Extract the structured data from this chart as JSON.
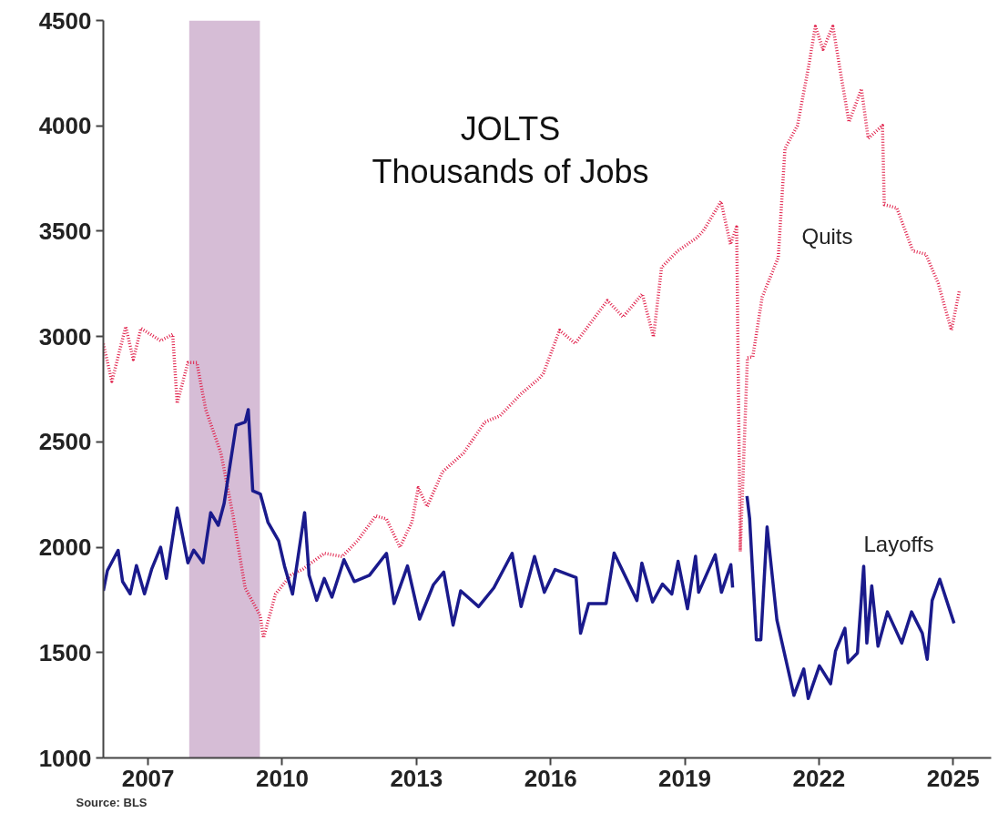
{
  "chart_data": {
    "type": "line",
    "title": "JOLTS\nThousands of Jobs",
    "xlim": [
      2006.0,
      2025.85
    ],
    "xticks": [
      2007,
      2010,
      2013,
      2016,
      2019,
      2022,
      2025
    ],
    "ylim": [
      1000,
      4500
    ],
    "yticks": [
      1000,
      1500,
      2000,
      2500,
      3000,
      3500,
      4000,
      4500
    ],
    "grid": false,
    "marker": "none",
    "bands": [
      {
        "axis": "x",
        "from": 2007.92,
        "to": 2009.5,
        "color": "#d6bdd6"
      }
    ],
    "annotations": [
      "Source: BLS"
    ],
    "series": [
      {
        "name": "Quits",
        "color": "#e0204a",
        "line_style": "dotted",
        "x": [
          2006.0,
          2006.19,
          2006.5,
          2006.67,
          2006.84,
          2007.28,
          2007.55,
          2007.65,
          2007.89,
          2008.09,
          2008.29,
          2008.63,
          2008.9,
          2009.17,
          2009.51,
          2009.58,
          2009.85,
          2010.19,
          2010.46,
          2010.94,
          2011.34,
          2011.68,
          2012.09,
          2012.33,
          2012.63,
          2012.9,
          2013.04,
          2013.24,
          2013.58,
          2014.05,
          2014.53,
          2014.87,
          2015.34,
          2015.75,
          2015.84,
          2016.2,
          2016.55,
          2017.27,
          2017.62,
          2018.05,
          2018.3,
          2018.48,
          2018.84,
          2019.27,
          2019.41,
          2019.81,
          2020.02,
          2020.16,
          2020.24,
          2020.4,
          2020.52,
          2020.73,
          2021.09,
          2021.24,
          2021.52,
          2021.77,
          2021.92,
          2022.09,
          2022.31,
          2022.52,
          2022.67,
          2022.95,
          2023.1,
          2023.42,
          2023.46,
          2023.74,
          2024.1,
          2024.39,
          2024.67,
          2024.96,
          2025.14
        ],
        "values": [
          2965,
          2787,
          3047,
          2891,
          3039,
          2980,
          3010,
          2683,
          2876,
          2876,
          2653,
          2446,
          2149,
          1807,
          1674,
          1570,
          1778,
          1867,
          1896,
          1971,
          1956,
          2030,
          2149,
          2134,
          2000,
          2119,
          2282,
          2193,
          2357,
          2446,
          2594,
          2624,
          2728,
          2802,
          2826,
          3030,
          2967,
          3171,
          3093,
          3202,
          2998,
          3328,
          3406,
          3469,
          3500,
          3641,
          3438,
          3520,
          1980,
          2900,
          2904,
          3187,
          3375,
          3892,
          4002,
          4284,
          4472,
          4363,
          4472,
          4206,
          4018,
          4175,
          3940,
          4002,
          3626,
          3610,
          3406,
          3391,
          3250,
          3030,
          3218
        ]
      },
      {
        "name": "Layoffs",
        "color": "#1a1a8c",
        "line_style": "solid",
        "x": [
          2006.0,
          2006.09,
          2006.33,
          2006.43,
          2006.6,
          2006.74,
          2006.92,
          2007.08,
          2007.28,
          2007.41,
          2007.65,
          2007.89,
          2008.02,
          2008.23,
          2008.4,
          2008.57,
          2008.7,
          2008.97,
          2009.17,
          2009.24,
          2009.34,
          2009.51,
          2009.68,
          2009.92,
          2010.05,
          2010.23,
          2010.5,
          2010.6,
          2010.77,
          2010.94,
          2011.11,
          2011.38,
          2011.61,
          2011.95,
          2012.33,
          2012.5,
          2012.8,
          2013.07,
          2013.38,
          2013.61,
          2013.82,
          2013.99,
          2014.39,
          2014.73,
          2015.14,
          2015.34,
          2015.64,
          2015.86,
          2016.1,
          2016.57,
          2016.67,
          2016.85,
          2017.24,
          2017.42,
          2017.93,
          2018.04,
          2018.28,
          2018.5,
          2018.71,
          2018.85,
          2019.06,
          2019.24,
          2019.31,
          2019.68,
          2019.82,
          2020.03,
          2020.07,
          2020.2,
          2020.39,
          2020.45,
          2020.6,
          2020.7,
          2020.84,
          2021.06,
          2021.44,
          2021.66,
          2021.76,
          2022.01,
          2022.26,
          2022.37,
          2022.58,
          2022.65,
          2022.86,
          2023.0,
          2023.07,
          2023.18,
          2023.32,
          2023.53,
          2023.85,
          2024.07,
          2024.31,
          2024.42,
          2024.53,
          2024.7,
          2025.02
        ],
        "values": [
          1793,
          1889,
          1985,
          1837,
          1779,
          1913,
          1779,
          1896,
          2000,
          1852,
          2186,
          1926,
          1986,
          1926,
          2164,
          2104,
          2208,
          2579,
          2594,
          2653,
          2268,
          2253,
          2119,
          2030,
          1911,
          1778,
          2164,
          1867,
          1748,
          1852,
          1763,
          1941,
          1837,
          1867,
          1971,
          1733,
          1911,
          1659,
          1822,
          1882,
          1630,
          1793,
          1718,
          1807,
          1971,
          1718,
          1956,
          1786,
          1894,
          1856,
          1592,
          1732,
          1732,
          1972,
          1747,
          1925,
          1740,
          1825,
          1778,
          1933,
          1708,
          1957,
          1786,
          1964,
          1786,
          1917,
          1809,
          null,
          2243,
          2135,
          1561,
          1561,
          2096,
          1654,
          1297,
          1422,
          1282,
          1437,
          1352,
          1507,
          1615,
          1452,
          1498,
          1910,
          1545,
          1817,
          1530,
          1693,
          1545,
          1693,
          1592,
          1468,
          1747,
          1848,
          1639
        ]
      }
    ]
  }
}
